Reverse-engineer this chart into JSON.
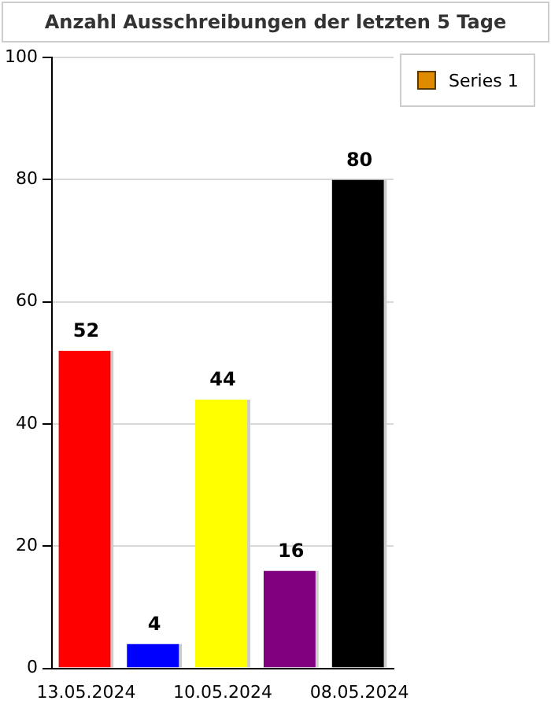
{
  "chart_data": {
    "type": "bar",
    "title": "Anzahl Ausschreibungen der letzten 5 Tage",
    "categories": [
      "13.05.2024",
      null,
      "10.05.2024",
      null,
      "08.05.2024"
    ],
    "series": [
      {
        "name": "Series 1",
        "color": "#e08a00",
        "colors": [
          "#ff0000",
          "#0000ff",
          "#ffff00",
          "#800080",
          "#000000"
        ],
        "values": [
          52,
          4,
          44,
          16,
          80
        ]
      }
    ],
    "ylim": [
      0,
      100
    ],
    "yticks": [
      0,
      20,
      40,
      60,
      80,
      100
    ],
    "grid": "y",
    "legend": "top right",
    "data_labels": true
  }
}
